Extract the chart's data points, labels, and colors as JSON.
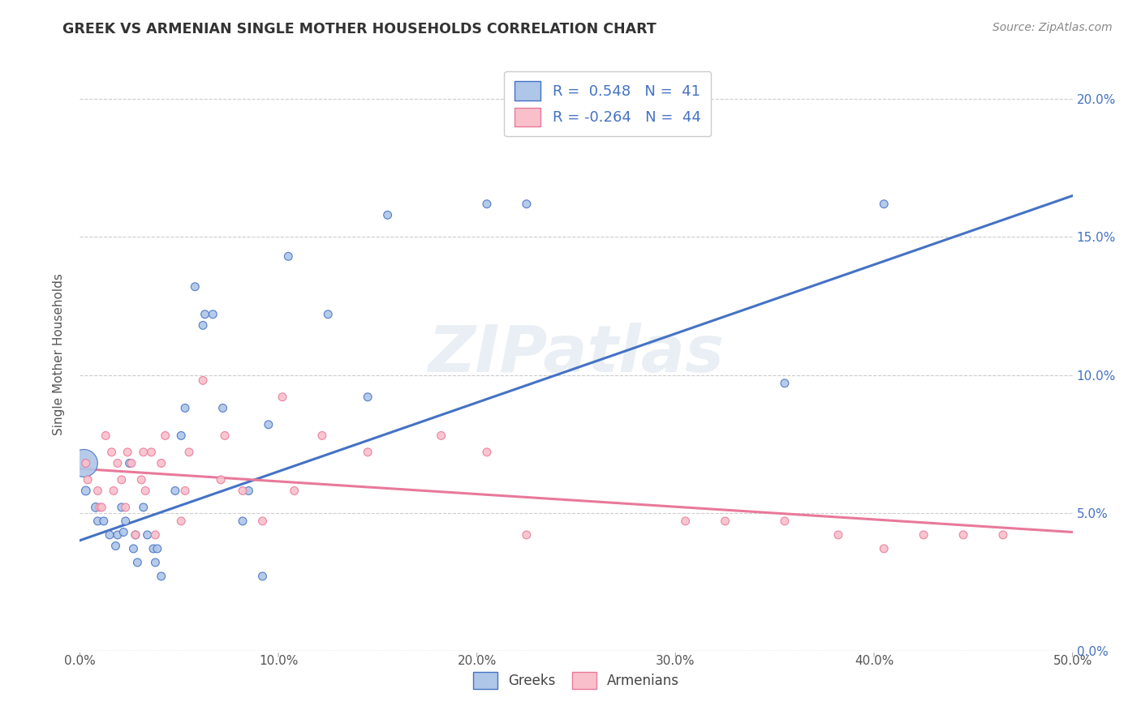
{
  "title": "GREEK VS ARMENIAN SINGLE MOTHER HOUSEHOLDS CORRELATION CHART",
  "source": "Source: ZipAtlas.com",
  "ylabel": "Single Mother Households",
  "xlim": [
    0.0,
    0.5
  ],
  "ylim": [
    0.0,
    0.215
  ],
  "x_ticks": [
    0.0,
    0.1,
    0.2,
    0.3,
    0.4,
    0.5
  ],
  "x_tick_labels": [
    "0.0%",
    "10.0%",
    "20.0%",
    "30.0%",
    "40.0%",
    "50.0%"
  ],
  "y_ticks": [
    0.0,
    0.05,
    0.1,
    0.15,
    0.2
  ],
  "y_tick_labels": [
    "0.0%",
    "5.0%",
    "10.0%",
    "15.0%",
    "20.0%"
  ],
  "greek_R": 0.548,
  "greek_N": 41,
  "armenian_R": -0.264,
  "armenian_N": 44,
  "greek_color": "#aec6e8",
  "armenian_color": "#f9c0cb",
  "greek_line_color": "#4472c4",
  "armenian_line_color": "#e8799a",
  "watermark": "ZIPatlas",
  "background_color": "#ffffff",
  "greek_scatter_x": [
    0.002,
    0.003,
    0.008,
    0.009,
    0.012,
    0.015,
    0.018,
    0.019,
    0.021,
    0.022,
    0.023,
    0.025,
    0.027,
    0.028,
    0.029,
    0.032,
    0.034,
    0.037,
    0.038,
    0.039,
    0.041,
    0.048,
    0.051,
    0.053,
    0.058,
    0.062,
    0.063,
    0.067,
    0.072,
    0.082,
    0.085,
    0.092,
    0.095,
    0.105,
    0.125,
    0.145,
    0.155,
    0.205,
    0.225,
    0.355,
    0.405
  ],
  "greek_scatter_y": [
    0.068,
    0.058,
    0.052,
    0.047,
    0.047,
    0.042,
    0.038,
    0.042,
    0.052,
    0.043,
    0.047,
    0.068,
    0.037,
    0.042,
    0.032,
    0.052,
    0.042,
    0.037,
    0.032,
    0.037,
    0.027,
    0.058,
    0.078,
    0.088,
    0.132,
    0.118,
    0.122,
    0.122,
    0.088,
    0.047,
    0.058,
    0.027,
    0.082,
    0.143,
    0.122,
    0.092,
    0.158,
    0.162,
    0.162,
    0.097,
    0.162
  ],
  "greek_scatter_size": [
    600,
    60,
    60,
    50,
    50,
    50,
    50,
    50,
    50,
    50,
    50,
    50,
    50,
    50,
    50,
    50,
    50,
    50,
    50,
    50,
    50,
    50,
    50,
    50,
    50,
    50,
    50,
    50,
    50,
    50,
    50,
    50,
    50,
    50,
    50,
    50,
    50,
    50,
    50,
    50,
    50
  ],
  "armenian_scatter_x": [
    0.003,
    0.004,
    0.009,
    0.01,
    0.011,
    0.013,
    0.016,
    0.017,
    0.019,
    0.021,
    0.023,
    0.024,
    0.026,
    0.028,
    0.031,
    0.032,
    0.033,
    0.036,
    0.038,
    0.041,
    0.043,
    0.051,
    0.053,
    0.055,
    0.062,
    0.071,
    0.073,
    0.082,
    0.092,
    0.102,
    0.108,
    0.122,
    0.145,
    0.182,
    0.205,
    0.225,
    0.305,
    0.325,
    0.355,
    0.382,
    0.405,
    0.425,
    0.445,
    0.465
  ],
  "armenian_scatter_y": [
    0.068,
    0.062,
    0.058,
    0.052,
    0.052,
    0.078,
    0.072,
    0.058,
    0.068,
    0.062,
    0.052,
    0.072,
    0.068,
    0.042,
    0.062,
    0.072,
    0.058,
    0.072,
    0.042,
    0.068,
    0.078,
    0.047,
    0.058,
    0.072,
    0.098,
    0.062,
    0.078,
    0.058,
    0.047,
    0.092,
    0.058,
    0.078,
    0.072,
    0.078,
    0.072,
    0.042,
    0.047,
    0.047,
    0.047,
    0.042,
    0.037,
    0.042,
    0.042,
    0.042
  ],
  "armenian_scatter_size": [
    50,
    50,
    50,
    50,
    50,
    50,
    50,
    50,
    50,
    50,
    50,
    50,
    50,
    50,
    50,
    50,
    50,
    50,
    50,
    50,
    50,
    50,
    50,
    50,
    50,
    50,
    50,
    50,
    50,
    50,
    50,
    50,
    50,
    50,
    50,
    50,
    50,
    50,
    50,
    50,
    50,
    50,
    50,
    50
  ],
  "greek_line_x": [
    0.0,
    0.5
  ],
  "greek_line_y": [
    0.04,
    0.165
  ],
  "armenian_line_x": [
    0.0,
    0.5
  ],
  "armenian_line_y": [
    0.066,
    0.043
  ]
}
